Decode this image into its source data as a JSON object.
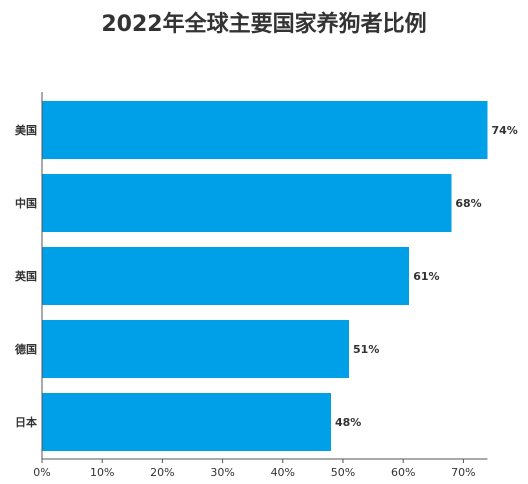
{
  "chart_data": {
    "type": "bar",
    "orientation": "horizontal",
    "title": "2022年全球主要国家养狗者比例",
    "categories": [
      "美国",
      "中国",
      "英国",
      "德国",
      "日本"
    ],
    "values": [
      74,
      68,
      61,
      51,
      48
    ],
    "value_labels": [
      "74%",
      "68%",
      "61%",
      "51%",
      "48%"
    ],
    "xticks": [
      0,
      10,
      20,
      30,
      40,
      50,
      60,
      70
    ],
    "xtick_labels": [
      "0%",
      "10%",
      "20%",
      "30%",
      "40%",
      "50%",
      "60%",
      "70%"
    ],
    "xlim": [
      0,
      74
    ],
    "xlabel": "",
    "ylabel": "",
    "grid": false,
    "bar_color": "#00A0E9"
  }
}
